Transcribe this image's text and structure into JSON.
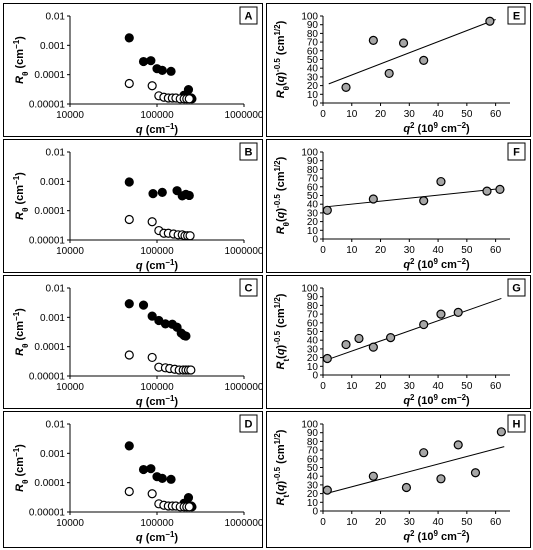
{
  "chart_data": [
    {
      "panel": "A",
      "type": "scatter",
      "xscale": "log",
      "yscale": "log",
      "xlabel": "q (cm⁻¹)",
      "ylabel": "Rθ (cm⁻¹)",
      "xlim": [
        10000,
        1000000
      ],
      "ylim": [
        1e-05,
        0.01
      ],
      "xticks": [
        "10000",
        "100000",
        "1000000"
      ],
      "yticks": [
        "0.00001",
        "0.0001",
        "0.001",
        "0.01"
      ],
      "series": [
        {
          "fill": "#000000",
          "points": [
            [
              48000,
              0.0018
            ],
            [
              70000,
              0.00028
            ],
            [
              85000,
              0.0003
            ],
            [
              100000,
              0.00016
            ],
            [
              115000,
              0.00014
            ],
            [
              145000,
              0.00013
            ],
            [
              205000,
              2e-05
            ],
            [
              230000,
              3.1e-05
            ],
            [
              240000,
              1.6e-05
            ],
            [
              248000,
              1.6e-05
            ],
            [
              252000,
              1.5e-05
            ]
          ]
        },
        {
          "fill": "#ffffff",
          "points": [
            [
              48000,
              5e-05
            ],
            [
              88000,
              4.2e-05
            ],
            [
              105000,
              1.9e-05
            ],
            [
              120000,
              1.7e-05
            ],
            [
              135000,
              1.6e-05
            ],
            [
              150000,
              1.6e-05
            ],
            [
              165000,
              1.6e-05
            ],
            [
              185000,
              1.5e-05
            ],
            [
              205000,
              1.5e-05
            ],
            [
              220000,
              1.5e-05
            ],
            [
              235000,
              1.5e-05
            ]
          ]
        }
      ]
    },
    {
      "panel": "B",
      "type": "scatter",
      "xscale": "log",
      "yscale": "log",
      "xlabel": "q (cm⁻¹)",
      "ylabel": "Rθ (cm⁻¹)",
      "xlim": [
        10000,
        1000000
      ],
      "ylim": [
        1e-05,
        0.01
      ],
      "xticks": [
        "10000",
        "100000",
        "1000000"
      ],
      "yticks": [
        "0.00001",
        "0.0001",
        "0.001",
        "0.01"
      ],
      "series": [
        {
          "fill": "#000000",
          "points": [
            [
              48000,
              0.00095
            ],
            [
              90000,
              0.00038
            ],
            [
              115000,
              0.00042
            ],
            [
              170000,
              0.00048
            ],
            [
              195000,
              0.00032
            ],
            [
              215000,
              0.00036
            ],
            [
              235000,
              0.00033
            ]
          ]
        },
        {
          "fill": "#ffffff",
          "points": [
            [
              48000,
              5e-05
            ],
            [
              88000,
              4.2e-05
            ],
            [
              105000,
              2.1e-05
            ],
            [
              120000,
              1.7e-05
            ],
            [
              135000,
              1.7e-05
            ],
            [
              155000,
              1.6e-05
            ],
            [
              175000,
              1.5e-05
            ],
            [
              195000,
              1.5e-05
            ],
            [
              210000,
              1.4e-05
            ],
            [
              225000,
              1.4e-05
            ],
            [
              240000,
              1.4e-05
            ]
          ]
        }
      ]
    },
    {
      "panel": "C",
      "type": "scatter",
      "xscale": "log",
      "yscale": "log",
      "xlabel": "q (cm⁻¹)",
      "ylabel": "Rθ (cm⁻¹)",
      "xlim": [
        10000,
        1000000
      ],
      "ylim": [
        1e-05,
        0.01
      ],
      "xticks": [
        "10000",
        "100000",
        "1000000"
      ],
      "yticks": [
        "0.00001",
        "0.0001",
        "0.001",
        "0.01"
      ],
      "series": [
        {
          "fill": "#000000",
          "points": [
            [
              48000,
              0.0029
            ],
            [
              70000,
              0.0026
            ],
            [
              88000,
              0.0011
            ],
            [
              105000,
              0.00078
            ],
            [
              125000,
              0.0006
            ],
            [
              150000,
              0.00058
            ],
            [
              170000,
              0.00046
            ],
            [
              190000,
              0.00029
            ],
            [
              205000,
              0.00024
            ],
            [
              215000,
              0.00023
            ]
          ]
        },
        {
          "fill": "#ffffff",
          "points": [
            [
              48000,
              5.2e-05
            ],
            [
              88000,
              4.3e-05
            ],
            [
              105000,
              2e-05
            ],
            [
              125000,
              1.9e-05
            ],
            [
              140000,
              1.8e-05
            ],
            [
              160000,
              1.7e-05
            ],
            [
              180000,
              1.6e-05
            ],
            [
              200000,
              1.6e-05
            ],
            [
              215000,
              1.6e-05
            ],
            [
              230000,
              1.6e-05
            ],
            [
              245000,
              1.6e-05
            ]
          ]
        }
      ]
    },
    {
      "panel": "D",
      "type": "scatter",
      "xscale": "log",
      "yscale": "log",
      "xlabel": "q (cm⁻¹)",
      "ylabel": "Rθ (cm⁻¹)",
      "xlim": [
        10000,
        1000000
      ],
      "ylim": [
        1e-05,
        0.01
      ],
      "xticks": [
        "10000",
        "100000",
        "1000000"
      ],
      "yticks": [
        "0.00001",
        "0.0001",
        "0.001",
        "0.01"
      ],
      "series": [
        {
          "fill": "#000000",
          "points": [
            [
              48000,
              0.0018
            ],
            [
              70000,
              0.00028
            ],
            [
              85000,
              0.0003
            ],
            [
              100000,
              0.00016
            ],
            [
              115000,
              0.00014
            ],
            [
              145000,
              0.00013
            ],
            [
              205000,
              2e-05
            ],
            [
              230000,
              3.1e-05
            ],
            [
              240000,
              1.6e-05
            ],
            [
              248000,
              1.6e-05
            ],
            [
              252000,
              1.5e-05
            ]
          ]
        },
        {
          "fill": "#ffffff",
          "points": [
            [
              48000,
              5e-05
            ],
            [
              88000,
              4.2e-05
            ],
            [
              105000,
              1.9e-05
            ],
            [
              120000,
              1.7e-05
            ],
            [
              135000,
              1.6e-05
            ],
            [
              150000,
              1.6e-05
            ],
            [
              165000,
              1.6e-05
            ],
            [
              185000,
              1.5e-05
            ],
            [
              205000,
              1.5e-05
            ],
            [
              220000,
              1.5e-05
            ],
            [
              235000,
              1.5e-05
            ]
          ]
        }
      ]
    },
    {
      "panel": "E",
      "type": "scatter",
      "xscale": "linear",
      "yscale": "linear",
      "xlabel": "q² (10⁹ cm⁻²)",
      "ylabel": "Rθ(q)^-0.5 (cm^1/2)",
      "xlim": [
        0,
        60
      ],
      "ylim": [
        0,
        100
      ],
      "xticks": [
        "0",
        "10",
        "20",
        "30",
        "40",
        "50",
        "60"
      ],
      "yticks": [
        "0",
        "10",
        "20",
        "30",
        "40",
        "50",
        "60",
        "70",
        "80",
        "90",
        "100"
      ],
      "fit_line": [
        [
          2,
          22
        ],
        [
          60,
          96
        ]
      ],
      "series": [
        {
          "fill": "#a6a6a6",
          "points": [
            [
              8,
              18
            ],
            [
              17.5,
              72
            ],
            [
              23,
              34
            ],
            [
              28,
              69
            ],
            [
              35,
              49
            ],
            [
              58,
              94
            ]
          ]
        }
      ]
    },
    {
      "panel": "F",
      "type": "scatter",
      "xscale": "linear",
      "yscale": "linear",
      "xlabel": "q² (10⁹ cm⁻²)",
      "ylabel": "Rθ(q)^-0.5 (cm^1/2)",
      "xlim": [
        0,
        60
      ],
      "ylim": [
        0,
        100
      ],
      "xticks": [
        "0",
        "10",
        "20",
        "30",
        "40",
        "50",
        "60"
      ],
      "yticks": [
        "0",
        "10",
        "20",
        "30",
        "40",
        "50",
        "60",
        "70",
        "80",
        "90",
        "100"
      ],
      "fit_line": [
        [
          1,
          37
        ],
        [
          62,
          58
        ]
      ],
      "series": [
        {
          "fill": "#a6a6a6",
          "points": [
            [
              1.5,
              33
            ],
            [
              17.5,
              46
            ],
            [
              35,
              44
            ],
            [
              41,
              66
            ],
            [
              57,
              55
            ],
            [
              61.5,
              57
            ]
          ]
        }
      ]
    },
    {
      "panel": "G",
      "type": "scatter",
      "xscale": "linear",
      "yscale": "linear",
      "xlabel": "q² (10⁹ cm⁻²)",
      "ylabel": "Rt(q)^-0.5 (cm^1/2)",
      "xlim": [
        0,
        60
      ],
      "ylim": [
        0,
        100
      ],
      "xticks": [
        "0",
        "10",
        "20",
        "30",
        "40",
        "50",
        "60"
      ],
      "yticks": [
        "0",
        "10",
        "20",
        "30",
        "40",
        "50",
        "60",
        "70",
        "80",
        "90",
        "100"
      ],
      "fit_line": [
        [
          1,
          17
        ],
        [
          62,
          88
        ]
      ],
      "series": [
        {
          "fill": "#a6a6a6",
          "points": [
            [
              1.5,
              19
            ],
            [
              8,
              35
            ],
            [
              12.5,
              42
            ],
            [
              17.5,
              32
            ],
            [
              23.5,
              43
            ],
            [
              35,
              58
            ],
            [
              41,
              70
            ],
            [
              47,
              72
            ]
          ]
        }
      ]
    },
    {
      "panel": "H",
      "type": "scatter",
      "xscale": "linear",
      "yscale": "linear",
      "xlabel": "q² (10⁹ cm⁻²)",
      "ylabel": "Rt(q)^-0.5 (cm^1/2)",
      "xlim": [
        0,
        60
      ],
      "ylim": [
        0,
        100
      ],
      "xticks": [
        "0",
        "10",
        "20",
        "30",
        "40",
        "50",
        "60"
      ],
      "yticks": [
        "0",
        "10",
        "20",
        "30",
        "40",
        "50",
        "60",
        "70",
        "80",
        "90",
        "100"
      ],
      "fit_line": [
        [
          1,
          20
        ],
        [
          63,
          74
        ]
      ],
      "series": [
        {
          "fill": "#a6a6a6",
          "points": [
            [
              1.5,
              24
            ],
            [
              17.5,
              40
            ],
            [
              29,
              27
            ],
            [
              35,
              67
            ],
            [
              41,
              37
            ],
            [
              47,
              76
            ],
            [
              53,
              44
            ],
            [
              62,
              91
            ]
          ]
        }
      ]
    }
  ]
}
